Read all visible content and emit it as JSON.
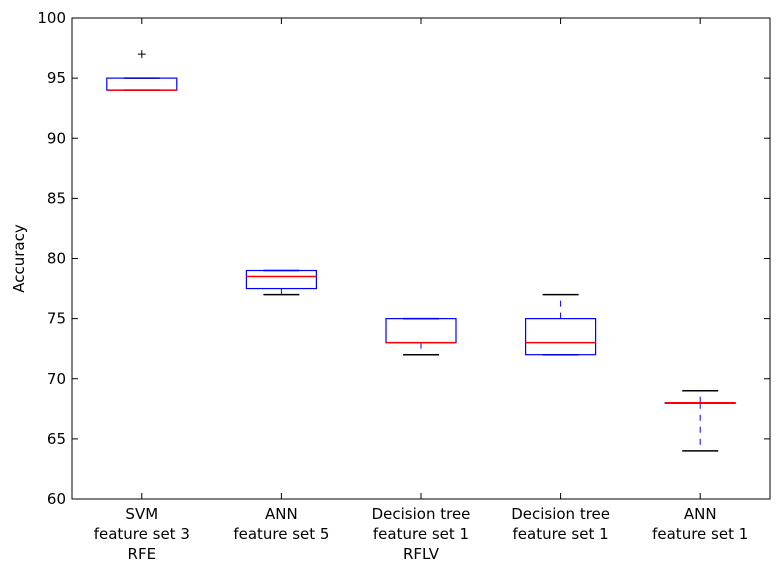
{
  "chart_data": {
    "type": "box",
    "title": "",
    "xlabel": "",
    "ylabel": "Accuracy",
    "ylim": [
      60,
      100
    ],
    "yticks": [
      60,
      65,
      70,
      75,
      80,
      85,
      90,
      95,
      100
    ],
    "grid": false,
    "categories": [
      [
        "SVM",
        "feature set 3",
        "RFE"
      ],
      [
        "ANN",
        "feature set 5"
      ],
      [
        "Decision tree",
        "feature set 1",
        "RFLV"
      ],
      [
        "Decision tree",
        "feature set 1"
      ],
      [
        "ANN",
        "feature set 1"
      ]
    ],
    "boxes": [
      {
        "whisker_low": 94,
        "q1": 94,
        "median": 94,
        "q3": 95,
        "whisker_high": 95,
        "outliers": [
          97
        ]
      },
      {
        "whisker_low": 77,
        "q1": 77.5,
        "median": 78.5,
        "q3": 79,
        "whisker_high": 79,
        "outliers": []
      },
      {
        "whisker_low": 72,
        "q1": 73,
        "median": 73,
        "q3": 75,
        "whisker_high": 75,
        "outliers": []
      },
      {
        "whisker_low": 72,
        "q1": 72,
        "median": 73,
        "q3": 75,
        "whisker_high": 77,
        "outliers": []
      },
      {
        "whisker_low": 64,
        "q1": 68,
        "median": 68,
        "q3": 68,
        "whisker_high": 69,
        "outliers": []
      }
    ],
    "colors": {
      "box": "#0000ff",
      "median": "#ff0000",
      "whisker": "#0000ff",
      "cap": "#000000",
      "outlier": "#000000"
    }
  }
}
